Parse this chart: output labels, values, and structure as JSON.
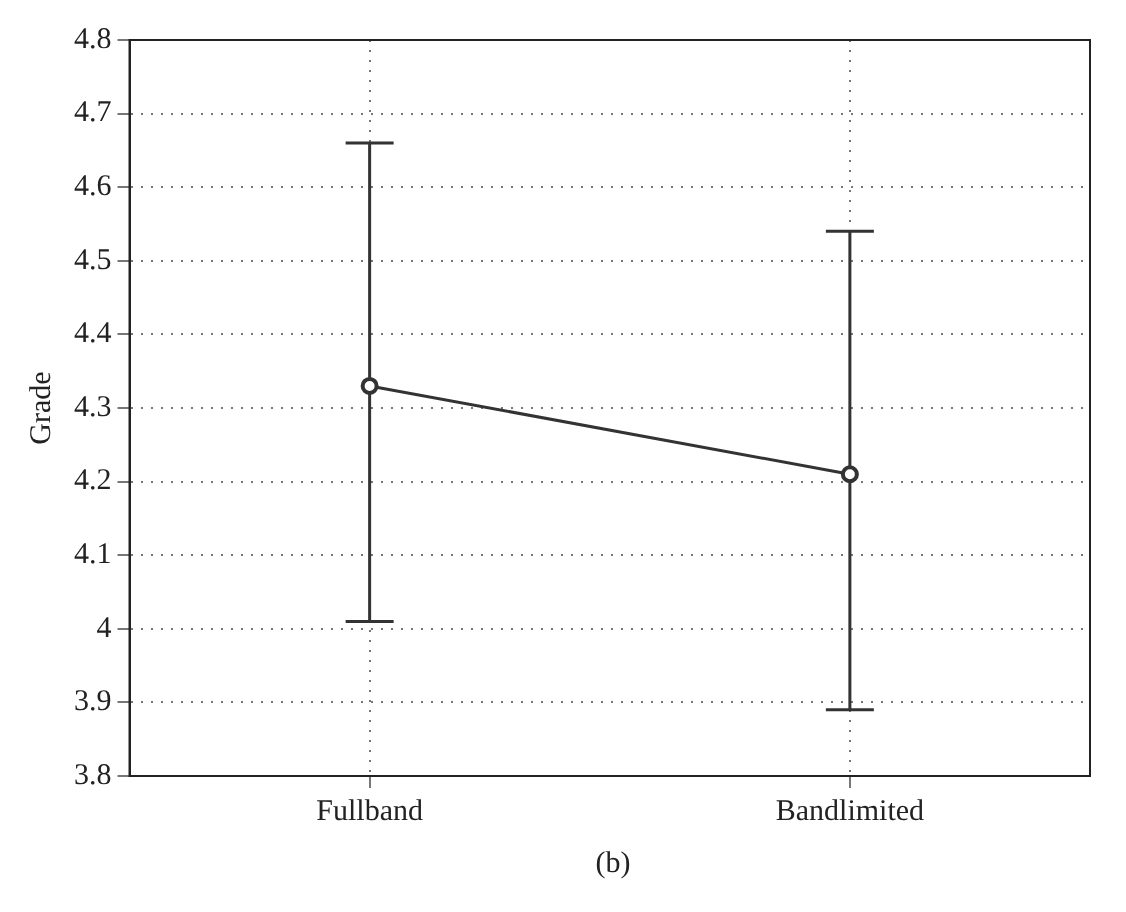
{
  "chart_data": {
    "type": "line",
    "ylabel": "Grade",
    "categories": [
      "Fullband",
      "Bandlimited"
    ],
    "series": [
      {
        "color": "#333333",
        "values": [
          4.33,
          4.21
        ],
        "errors": [
          [
            4.01,
            4.66
          ],
          [
            3.89,
            4.54
          ]
        ]
      }
    ],
    "ylim": [
      3.8,
      4.8
    ],
    "yticks": [
      3.8,
      3.9,
      4,
      4.1,
      4.2,
      4.3,
      4.4,
      4.5,
      4.6,
      4.7,
      4.8
    ],
    "grid": true,
    "marker": "circle",
    "line_style": "solid",
    "legend": false,
    "annotations": [
      "(b)"
    ]
  }
}
